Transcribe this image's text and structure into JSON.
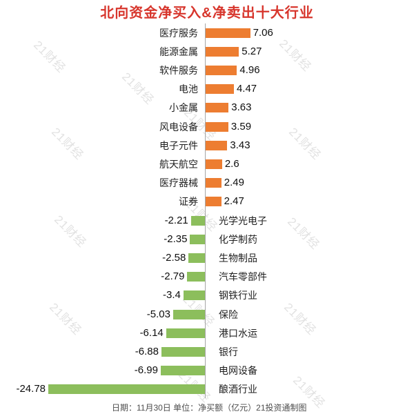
{
  "title": {
    "text": "北向资金净买入&净卖出十大行业",
    "color": "#d7352c"
  },
  "chart_data": {
    "type": "bar",
    "orientation": "horizontal",
    "title": "北向资金净买入&净卖出十大行业",
    "unit": "亿元",
    "categories": [
      "医疗服务",
      "能源金属",
      "软件服务",
      "电池",
      "小金属",
      "风电设备",
      "电子元件",
      "航天航空",
      "医疗器械",
      "证券",
      "光学光电子",
      "化学制药",
      "生物制品",
      "汽车零部件",
      "钢铁行业",
      "保险",
      "港口水运",
      "银行",
      "电网设备",
      "酿酒行业"
    ],
    "values": [
      7.06,
      5.27,
      4.96,
      4.47,
      3.63,
      3.59,
      3.43,
      2.6,
      2.49,
      2.47,
      -2.21,
      -2.35,
      -2.58,
      -2.79,
      -3.4,
      -5.03,
      -6.14,
      -6.88,
      -6.99,
      -24.78
    ],
    "xlim": [
      -24.78,
      7.06
    ],
    "grid": false,
    "legend": "none",
    "value_labels": "outside-end",
    "positive_color": "#ed7d31",
    "negative_color": "#8cbe5c",
    "axis_line_color": "#a6a6a6"
  },
  "footer": {
    "text": "日期：11月30日 单位：净买额（亿元）21投资通制图",
    "color": "#4d4d4d"
  },
  "watermark": {
    "text": "21财经",
    "color": "#e2e2e2"
  }
}
